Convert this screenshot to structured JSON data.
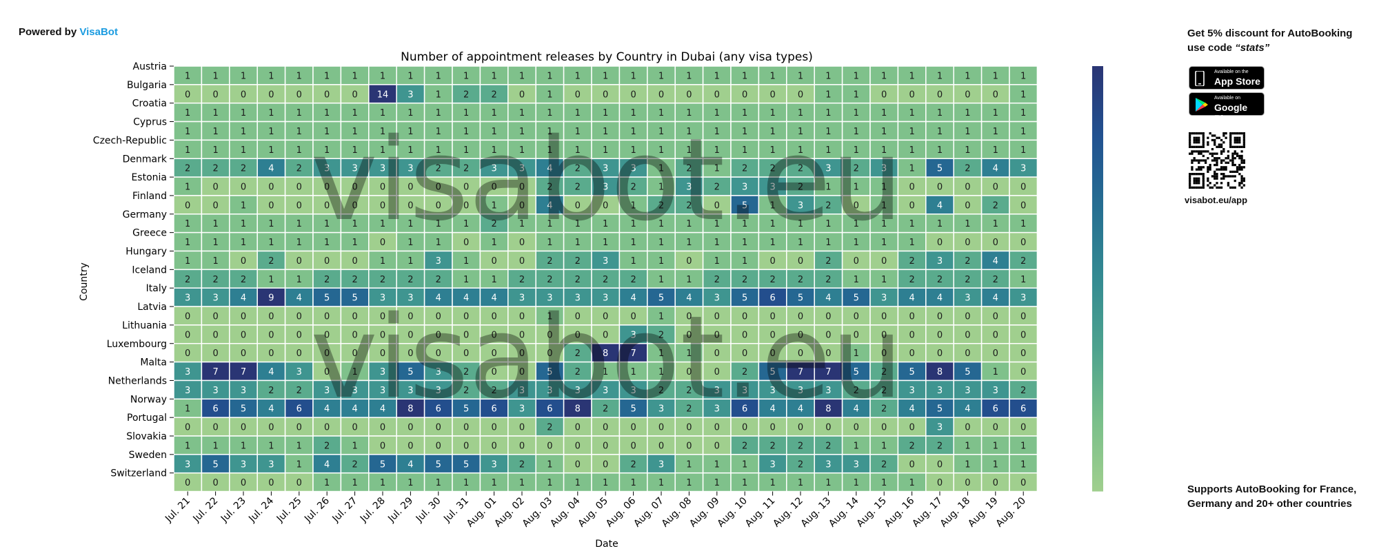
{
  "powered": {
    "prefix": "Powered by",
    "brand": "VisaBot"
  },
  "promo": {
    "line1_pre": "Get 5% discount for ",
    "line1_brand": "AutoBooking",
    "line2_pre": "use code ",
    "code": "“stats”"
  },
  "badges": {
    "appstore_small": "Available on the",
    "appstore_big": "App Store",
    "googleplay_small": "Available on",
    "googleplay_big": "Google Play"
  },
  "qr_caption": "visabot.eu/app",
  "support": {
    "pre": "Supports ",
    "brand": "AutoBooking",
    "post": " for France, Germany and 20+ other countries"
  },
  "watermark": "visabot.eu",
  "colors": {
    "brand": "#1a9be0",
    "scale": [
      "#a0cf8e",
      "#79bf8a",
      "#4ea38e",
      "#348b92",
      "#266f92",
      "#225291",
      "#2a3574"
    ]
  },
  "chart_data": {
    "type": "heatmap",
    "title": "Number of appointment releases by Country in Dubai (any visa types)",
    "xlabel": "Date",
    "ylabel": "Country",
    "colorbar": {
      "min": 0,
      "max": 7,
      "ticks": [
        0,
        1,
        2,
        3,
        4,
        5,
        6,
        7
      ]
    },
    "x": [
      "Jul. 21",
      "Jul. 22",
      "Jul. 23",
      "Jul. 24",
      "Jul. 25",
      "Jul. 26",
      "Jul. 27",
      "Jul. 28",
      "Jul. 29",
      "Jul. 30",
      "Jul. 31",
      "Aug. 01",
      "Aug. 02",
      "Aug. 03",
      "Aug. 04",
      "Aug. 05",
      "Aug. 06",
      "Aug. 07",
      "Aug. 08",
      "Aug. 09",
      "Aug. 10",
      "Aug. 11",
      "Aug. 12",
      "Aug. 13",
      "Aug. 14",
      "Aug. 15",
      "Aug. 16",
      "Aug. 17",
      "Aug. 18",
      "Aug. 19",
      "Aug. 20"
    ],
    "y": [
      "Austria",
      "Bulgaria",
      "Croatia",
      "Cyprus",
      "Czech-Republic",
      "Denmark",
      "Estonia",
      "Finland",
      "Germany",
      "Greece",
      "Hungary",
      "Iceland",
      "Italy",
      "Latvia",
      "Lithuania",
      "Luxembourg",
      "Malta",
      "Netherlands",
      "Norway",
      "Portugal",
      "Slovakia",
      "Sweden",
      "Switzerland"
    ],
    "values": [
      [
        1,
        1,
        1,
        1,
        1,
        1,
        1,
        1,
        1,
        1,
        1,
        1,
        1,
        1,
        1,
        1,
        1,
        1,
        1,
        1,
        1,
        1,
        1,
        1,
        1,
        1,
        1,
        1,
        1,
        1,
        1
      ],
      [
        0,
        0,
        0,
        0,
        0,
        0,
        0,
        14,
        3,
        1,
        2,
        2,
        0,
        1,
        0,
        0,
        0,
        0,
        0,
        0,
        0,
        0,
        0,
        1,
        1,
        0,
        0,
        0,
        0,
        0,
        1
      ],
      [
        1,
        1,
        1,
        1,
        1,
        1,
        1,
        1,
        1,
        1,
        1,
        1,
        1,
        1,
        1,
        1,
        1,
        1,
        1,
        1,
        1,
        1,
        1,
        1,
        1,
        1,
        1,
        1,
        1,
        1,
        1
      ],
      [
        1,
        1,
        1,
        1,
        1,
        1,
        1,
        1,
        1,
        1,
        1,
        1,
        1,
        1,
        1,
        1,
        1,
        1,
        1,
        1,
        1,
        1,
        1,
        1,
        1,
        1,
        1,
        1,
        1,
        1,
        1
      ],
      [
        1,
        1,
        1,
        1,
        1,
        1,
        1,
        1,
        1,
        1,
        1,
        1,
        1,
        1,
        1,
        1,
        1,
        1,
        1,
        1,
        1,
        1,
        1,
        1,
        1,
        1,
        1,
        1,
        1,
        1,
        1
      ],
      [
        2,
        2,
        2,
        4,
        2,
        3,
        3,
        3,
        3,
        2,
        2,
        3,
        3,
        4,
        2,
        3,
        3,
        1,
        2,
        1,
        2,
        2,
        2,
        3,
        2,
        3,
        1,
        5,
        2,
        4,
        3
      ],
      [
        1,
        0,
        0,
        0,
        0,
        0,
        0,
        0,
        0,
        0,
        0,
        0,
        0,
        2,
        2,
        3,
        2,
        1,
        3,
        2,
        3,
        3,
        2,
        1,
        1,
        1,
        0,
        0,
        0,
        0,
        0
      ],
      [
        0,
        0,
        1,
        0,
        0,
        0,
        0,
        0,
        0,
        0,
        0,
        1,
        0,
        4,
        0,
        0,
        1,
        2,
        2,
        0,
        5,
        1,
        3,
        2,
        0,
        1,
        0,
        4,
        0,
        2,
        0
      ],
      [
        1,
        1,
        1,
        1,
        1,
        1,
        1,
        1,
        1,
        1,
        1,
        2,
        1,
        1,
        1,
        1,
        1,
        1,
        1,
        1,
        1,
        1,
        1,
        1,
        1,
        1,
        1,
        1,
        1,
        1,
        1
      ],
      [
        1,
        1,
        1,
        1,
        1,
        1,
        1,
        0,
        1,
        1,
        0,
        1,
        0,
        1,
        1,
        1,
        1,
        1,
        1,
        1,
        1,
        1,
        1,
        1,
        1,
        1,
        1,
        0,
        0,
        0,
        0
      ],
      [
        1,
        1,
        0,
        2,
        0,
        0,
        0,
        1,
        1,
        3,
        1,
        0,
        0,
        2,
        2,
        3,
        1,
        1,
        0,
        1,
        1,
        0,
        0,
        2,
        0,
        0,
        2,
        3,
        2,
        4,
        2
      ],
      [
        2,
        2,
        2,
        1,
        1,
        2,
        2,
        2,
        2,
        2,
        1,
        1,
        2,
        2,
        2,
        2,
        2,
        1,
        1,
        2,
        2,
        2,
        2,
        2,
        1,
        1,
        2,
        2,
        2,
        2,
        1
      ],
      [
        3,
        3,
        4,
        9,
        4,
        5,
        5,
        3,
        3,
        4,
        4,
        4,
        3,
        3,
        3,
        3,
        4,
        5,
        4,
        3,
        5,
        6,
        5,
        4,
        5,
        3,
        4,
        4,
        3,
        4,
        3
      ],
      [
        0,
        0,
        0,
        0,
        0,
        0,
        0,
        0,
        0,
        0,
        0,
        0,
        0,
        1,
        0,
        0,
        0,
        1,
        0,
        0,
        0,
        0,
        0,
        0,
        0,
        0,
        0,
        0,
        0,
        0,
        0
      ],
      [
        0,
        0,
        0,
        0,
        0,
        0,
        0,
        0,
        0,
        0,
        0,
        0,
        0,
        0,
        0,
        0,
        3,
        2,
        0,
        0,
        0,
        0,
        0,
        0,
        0,
        0,
        0,
        0,
        0,
        0,
        0
      ],
      [
        0,
        0,
        0,
        0,
        0,
        0,
        0,
        0,
        0,
        0,
        0,
        0,
        0,
        0,
        2,
        8,
        7,
        1,
        1,
        0,
        0,
        0,
        0,
        0,
        1,
        0,
        0,
        0,
        0,
        0,
        0
      ],
      [
        3,
        7,
        7,
        4,
        3,
        0,
        1,
        3,
        5,
        3,
        2,
        0,
        0,
        5,
        2,
        1,
        1,
        1,
        0,
        0,
        2,
        5,
        7,
        7,
        5,
        2,
        5,
        8,
        5,
        1,
        0
      ],
      [
        3,
        3,
        3,
        2,
        2,
        3,
        3,
        3,
        3,
        3,
        2,
        2,
        3,
        3,
        3,
        3,
        3,
        2,
        2,
        3,
        3,
        3,
        3,
        3,
        2,
        2,
        3,
        3,
        3,
        3,
        2
      ],
      [
        1,
        6,
        5,
        4,
        6,
        4,
        4,
        4,
        8,
        6,
        5,
        6,
        3,
        6,
        8,
        2,
        5,
        3,
        2,
        3,
        6,
        4,
        4,
        8,
        4,
        2,
        4,
        5,
        4,
        6,
        6
      ],
      [
        0,
        0,
        0,
        0,
        0,
        0,
        0,
        0,
        0,
        0,
        0,
        0,
        0,
        2,
        0,
        0,
        0,
        0,
        0,
        0,
        0,
        0,
        0,
        0,
        0,
        0,
        0,
        3,
        0,
        0,
        0
      ],
      [
        1,
        1,
        1,
        1,
        1,
        2,
        1,
        0,
        0,
        0,
        0,
        0,
        0,
        0,
        0,
        0,
        0,
        0,
        0,
        0,
        2,
        2,
        2,
        2,
        1,
        1,
        2,
        2,
        1,
        1,
        1
      ],
      [
        3,
        5,
        3,
        3,
        1,
        4,
        2,
        5,
        4,
        5,
        5,
        3,
        2,
        1,
        0,
        0,
        2,
        3,
        1,
        1,
        1,
        3,
        2,
        3,
        3,
        2,
        0,
        0,
        1,
        1,
        1
      ],
      [
        0,
        0,
        0,
        0,
        0,
        1,
        1,
        1,
        1,
        1,
        1,
        1,
        1,
        1,
        1,
        1,
        1,
        1,
        1,
        1,
        1,
        1,
        1,
        1,
        1,
        1,
        1,
        0,
        0,
        0,
        0
      ]
    ]
  }
}
